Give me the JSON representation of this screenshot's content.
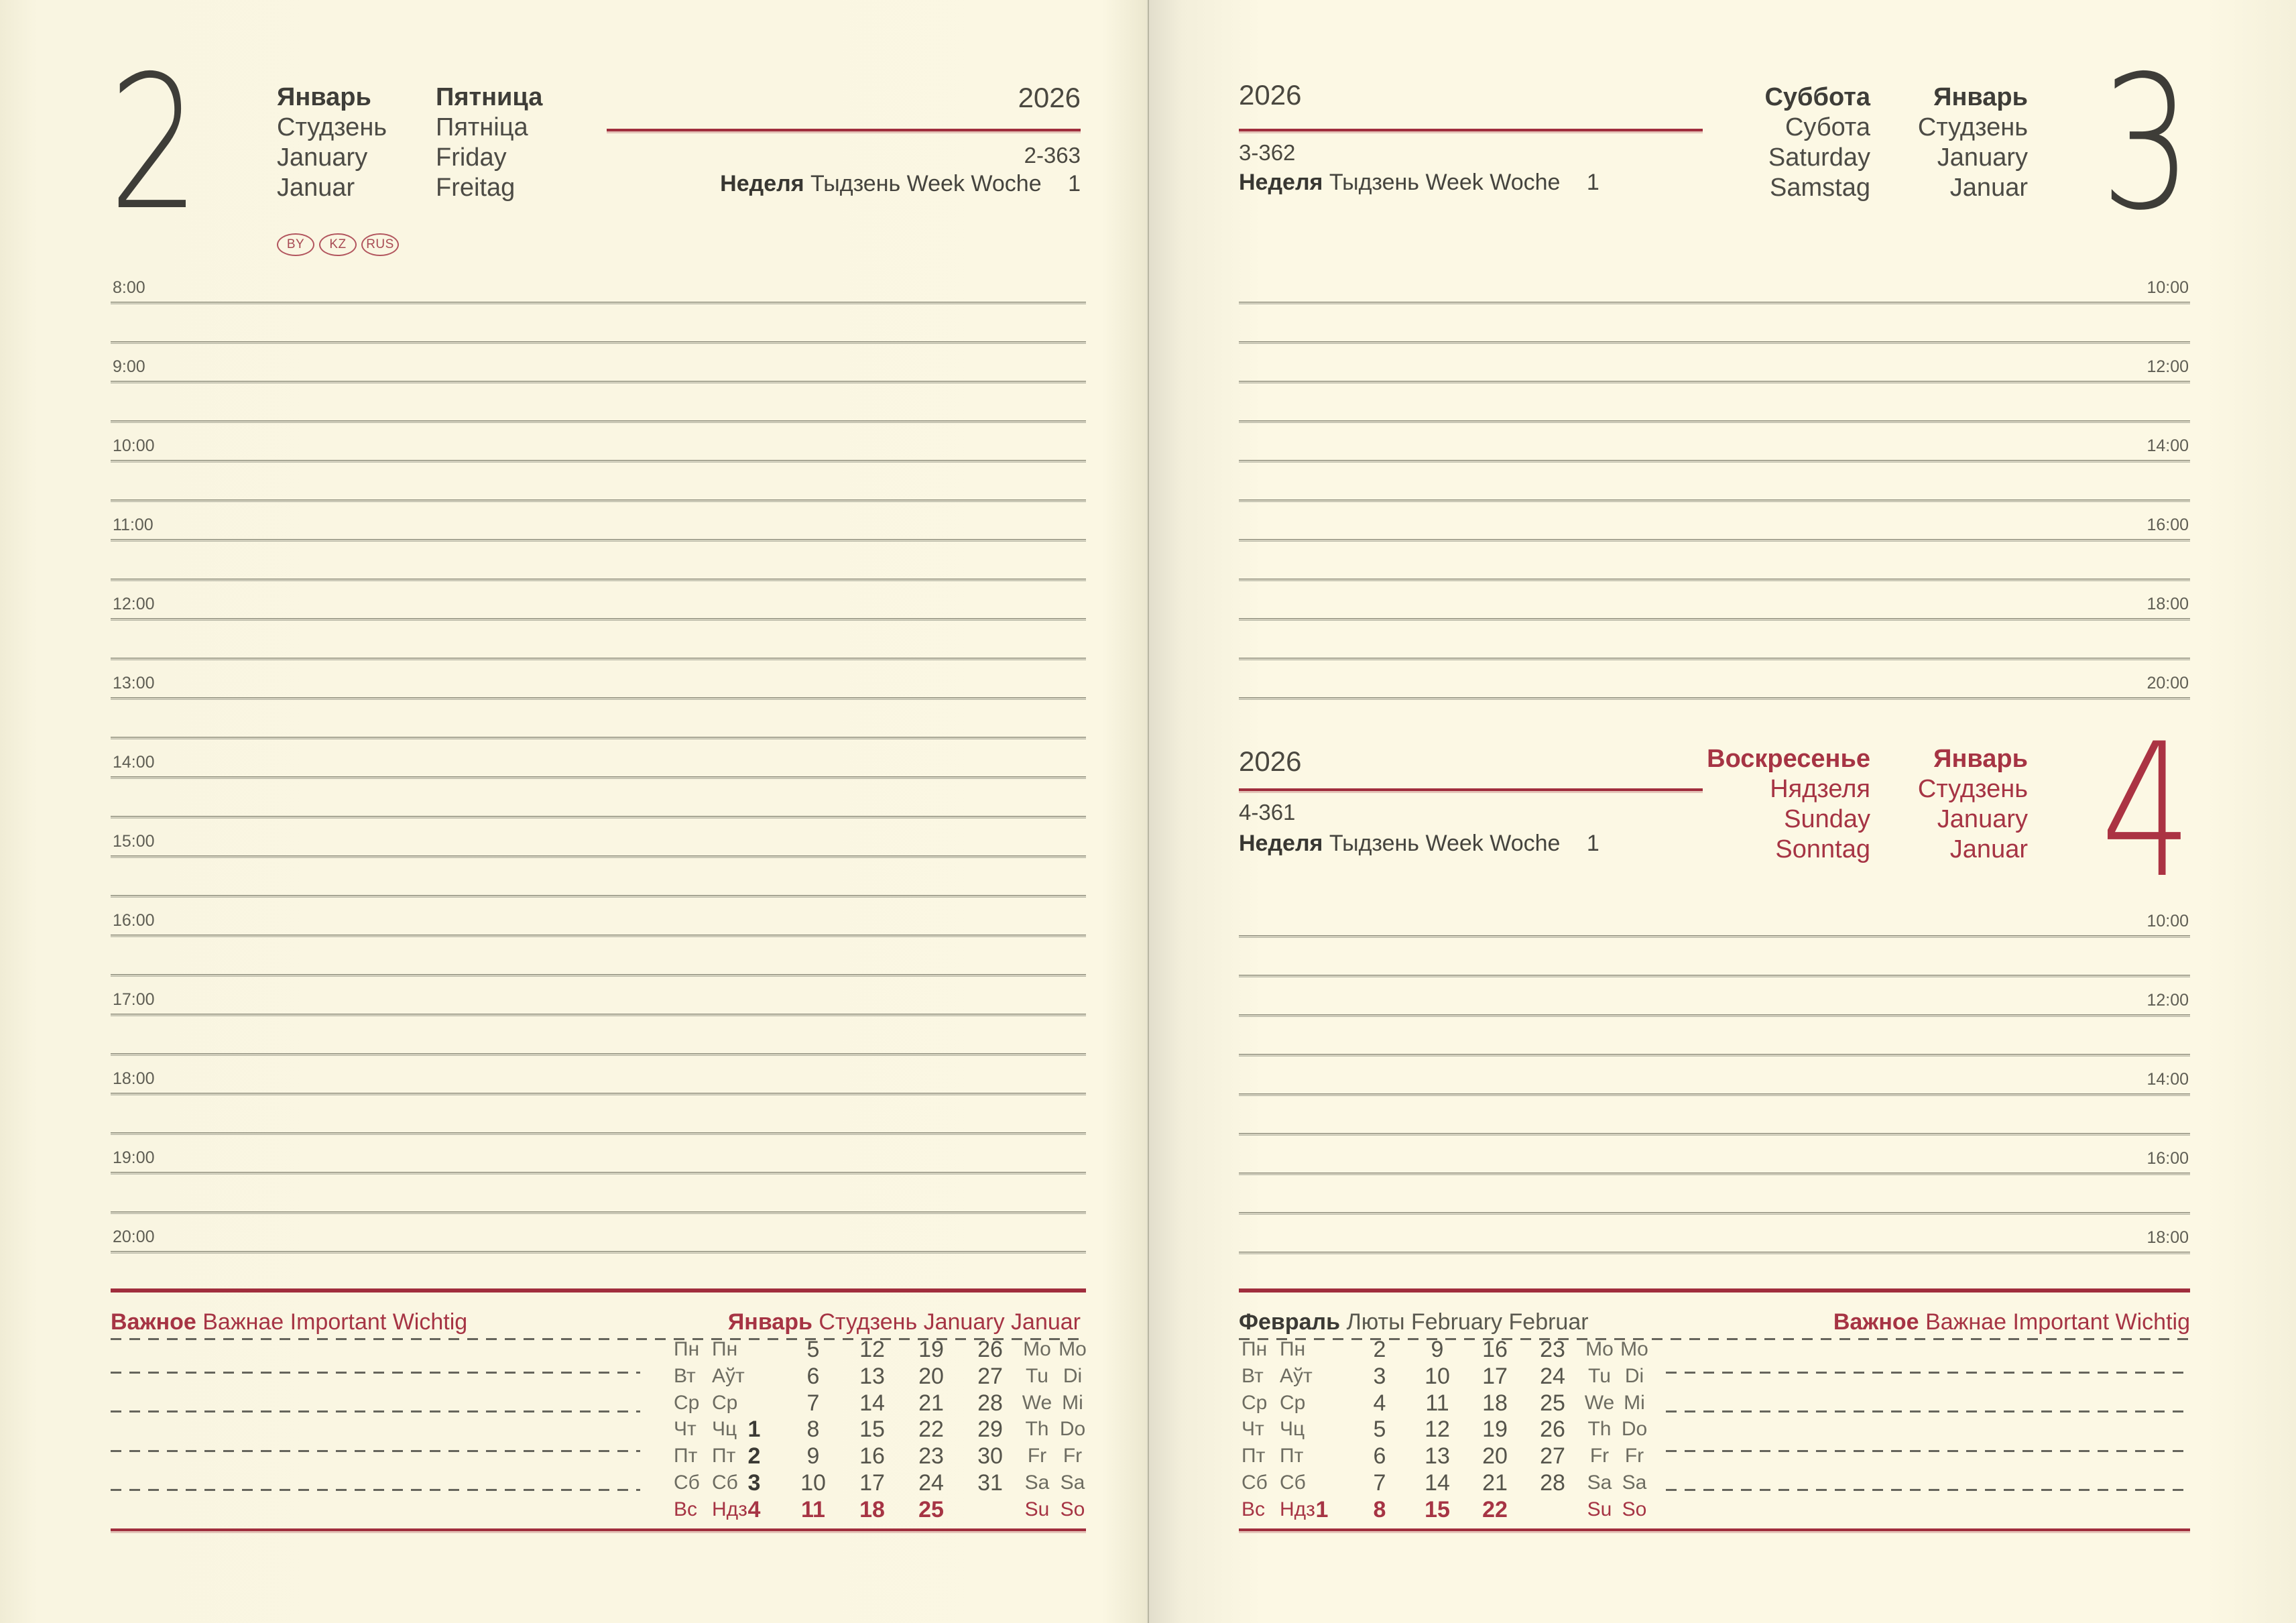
{
  "colors": {
    "accent_red": "#a63444",
    "rule_red": "#a02e3d",
    "ink": "#3e3d38",
    "paper": "#fbf7e3"
  },
  "left_page": {
    "day_number": "2",
    "month_stack": [
      "Январь",
      "Студзень",
      "January",
      "Januar"
    ],
    "weekday_stack": [
      "Пятница",
      "Пятніца",
      "Friday",
      "Freitag"
    ],
    "badges": [
      "BY",
      "KZ",
      "RUS"
    ],
    "year": "2026",
    "day_of_year": "2-363",
    "week_words": [
      "Неделя",
      "Тыдзень",
      "Week",
      "Woche"
    ],
    "week_number": "1",
    "times": [
      "8:00",
      "9:00",
      "10:00",
      "11:00",
      "12:00",
      "13:00",
      "14:00",
      "15:00",
      "16:00",
      "17:00",
      "18:00",
      "19:00",
      "20:00"
    ],
    "footer": {
      "important_words": [
        "Важное",
        "Важнае",
        "Important",
        "Wichtig"
      ],
      "month_words": [
        "Январь",
        "Студзень",
        "January",
        "Januar"
      ]
    }
  },
  "right_page": {
    "top": {
      "day_number": "3",
      "year": "2026",
      "day_of_year": "3-362",
      "week_words": [
        "Неделя",
        "Тыдзень",
        "Week",
        "Woche"
      ],
      "week_number": "1",
      "weekday_stack": [
        "Суббота",
        "Субота",
        "Saturday",
        "Samstag"
      ],
      "month_stack": [
        "Январь",
        "Студзень",
        "January",
        "Januar"
      ],
      "times": [
        "10:00",
        "12:00",
        "14:00",
        "16:00",
        "18:00",
        "20:00"
      ]
    },
    "bottom": {
      "day_number": "4",
      "year": "2026",
      "day_of_year": "4-361",
      "week_words": [
        "Неделя",
        "Тыдзень",
        "Week",
        "Woche"
      ],
      "week_number": "1",
      "weekday_stack": [
        "Воскресенье",
        "Нядзеля",
        "Sunday",
        "Sonntag"
      ],
      "month_stack": [
        "Январь",
        "Студзень",
        "January",
        "Januar"
      ],
      "times": [
        "10:00",
        "12:00",
        "14:00",
        "16:00",
        "18:00"
      ]
    },
    "footer": {
      "month_words": [
        "Февраль",
        "Люты",
        "February",
        "Februar"
      ],
      "important_words": [
        "Важное",
        "Важнае",
        "Important",
        "Wichtig"
      ]
    }
  },
  "calendars": {
    "january": {
      "rows": [
        {
          "ru": "Пн",
          "by": "Пн",
          "dates": [
            "",
            "5",
            "12",
            "19",
            "26"
          ],
          "en": "Mo",
          "de": "Mo"
        },
        {
          "ru": "Вт",
          "by": "Аўт",
          "dates": [
            "",
            "6",
            "13",
            "20",
            "27"
          ],
          "en": "Tu",
          "de": "Di"
        },
        {
          "ru": "Ср",
          "by": "Ср",
          "dates": [
            "",
            "7",
            "14",
            "21",
            "28"
          ],
          "en": "We",
          "de": "Mi"
        },
        {
          "ru": "Чт",
          "by": "Чц",
          "dates": [
            "1",
            "8",
            "15",
            "22",
            "29"
          ],
          "en": "Th",
          "de": "Do",
          "bold_first": true
        },
        {
          "ru": "Пт",
          "by": "Пт",
          "dates": [
            "2",
            "9",
            "16",
            "23",
            "30"
          ],
          "en": "Fr",
          "de": "Fr",
          "bold_first": true
        },
        {
          "ru": "Сб",
          "by": "Сб",
          "dates": [
            "3",
            "10",
            "17",
            "24",
            "31"
          ],
          "en": "Sa",
          "de": "Sa",
          "bold_first": true
        },
        {
          "ru": "Вс",
          "by": "Ндз",
          "dates": [
            "4",
            "11",
            "18",
            "25",
            ""
          ],
          "en": "Su",
          "de": "So",
          "red": true
        }
      ]
    },
    "february": {
      "rows": [
        {
          "ru": "Пн",
          "by": "Пн",
          "dates": [
            "",
            "2",
            "9",
            "16",
            "23"
          ],
          "en": "Mo",
          "de": "Mo"
        },
        {
          "ru": "Вт",
          "by": "Аўт",
          "dates": [
            "",
            "3",
            "10",
            "17",
            "24"
          ],
          "en": "Tu",
          "de": "Di"
        },
        {
          "ru": "Ср",
          "by": "Ср",
          "dates": [
            "",
            "4",
            "11",
            "18",
            "25"
          ],
          "en": "We",
          "de": "Mi"
        },
        {
          "ru": "Чт",
          "by": "Чц",
          "dates": [
            "",
            "5",
            "12",
            "19",
            "26"
          ],
          "en": "Th",
          "de": "Do"
        },
        {
          "ru": "Пт",
          "by": "Пт",
          "dates": [
            "",
            "6",
            "13",
            "20",
            "27"
          ],
          "en": "Fr",
          "de": "Fr"
        },
        {
          "ru": "Сб",
          "by": "Сб",
          "dates": [
            "",
            "7",
            "14",
            "21",
            "28"
          ],
          "en": "Sa",
          "de": "Sa"
        },
        {
          "ru": "Вс",
          "by": "Ндз",
          "dates": [
            "1",
            "8",
            "15",
            "22",
            ""
          ],
          "en": "Su",
          "de": "So",
          "red": true
        }
      ]
    }
  }
}
